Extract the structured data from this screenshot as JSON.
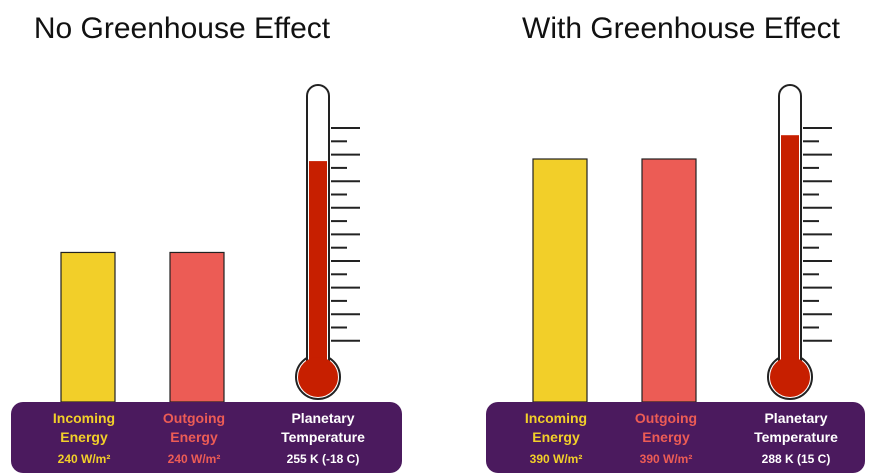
{
  "colors": {
    "incoming": "#F2CF29",
    "outgoing": "#EC5C55",
    "thermo_fill": "#C71F00",
    "panel": "#4B1A5E",
    "incoming_text": "#F2CF29",
    "outgoing_text": "#EC5C55",
    "temp_text": "#FFFFFF"
  },
  "chart_data": [
    {
      "type": "bar",
      "title": "No Greenhouse Effect",
      "unit": "W/m²",
      "categories": [
        "Incoming Energy",
        "Outgoing Energy"
      ],
      "values": [
        240,
        240
      ],
      "labels": {
        "incoming": {
          "line1": "Incoming",
          "line2": "Energy",
          "value": "240 W/m²"
        },
        "outgoing": {
          "line1": "Outgoing",
          "line2": "Energy",
          "value": "240 W/m²"
        },
        "temperature": {
          "line1": "Planetary",
          "line2": "Temperature",
          "value": "255 K (-18 C)"
        }
      },
      "thermometer": {
        "level_fraction": 0.57
      }
    },
    {
      "type": "bar",
      "title": "With Greenhouse Effect",
      "unit": "W/m²",
      "categories": [
        "Incoming Energy",
        "Outgoing Energy"
      ],
      "values": [
        390,
        390
      ],
      "labels": {
        "incoming": {
          "line1": "Incoming",
          "line2": "Energy",
          "value": "390 W/m²"
        },
        "outgoing": {
          "line1": "Outgoing",
          "line2": "Energy",
          "value": "390 W/m²"
        },
        "temperature": {
          "line1": "Planetary",
          "line2": "Temperature",
          "value": "288 K (15 C)"
        }
      },
      "thermometer": {
        "level_fraction": 0.64
      }
    }
  ]
}
